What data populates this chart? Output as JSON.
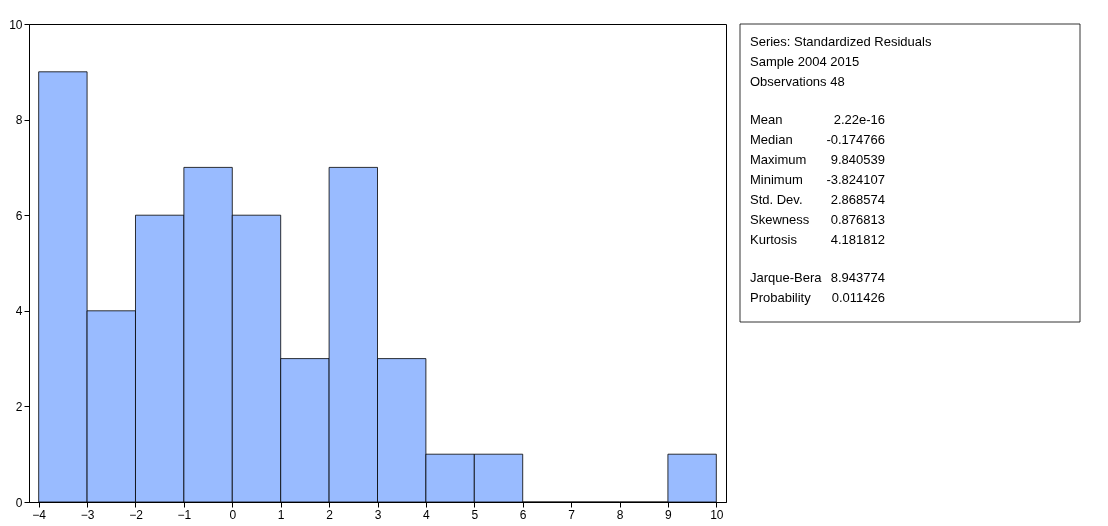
{
  "chart_data": {
    "type": "histogram",
    "bins": [
      -4,
      -3,
      -2,
      -1,
      0,
      1,
      2,
      3,
      4,
      5,
      6,
      7,
      8,
      9,
      10
    ],
    "values": [
      9,
      4,
      6,
      7,
      6,
      3,
      7,
      3,
      1,
      1,
      0,
      0,
      0,
      1
    ],
    "color": "#99bbff",
    "xlim": [
      -4.2,
      10.2
    ],
    "xticks": [
      -4,
      -3,
      -2,
      -1,
      0,
      1,
      2,
      3,
      4,
      5,
      6,
      7,
      8,
      9,
      10
    ],
    "ylim": [
      0,
      10
    ],
    "yticks": [
      0,
      2,
      4,
      6,
      8,
      10
    ],
    "grid": false,
    "annotations": [
      "Series: Standardized Residuals",
      "Sample 2004 2015",
      "Observations 48",
      "Mean\t2.22e-16",
      "Median\t-0.174766",
      "Maximum\t9.840539",
      "Minimum\t-3.824107",
      "Std. Dev.\t2.868574",
      "Skewness\t0.876813",
      "Kurtosis\t4.181812",
      "Jarque-Bera\t8.943774",
      "Probability\t0.011426"
    ]
  }
}
